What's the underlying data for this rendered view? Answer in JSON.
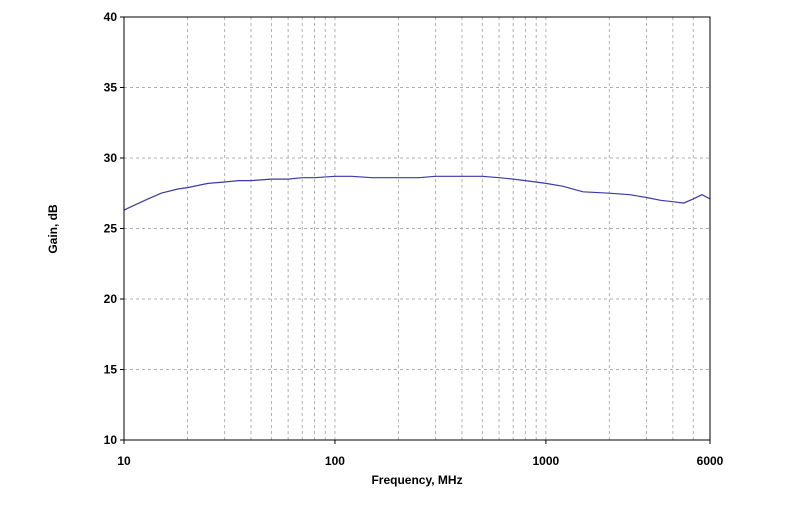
{
  "chart_data": {
    "type": "line",
    "title": "",
    "xlabel": "Frequency, MHz",
    "ylabel": "Gain, dB",
    "x_scale": "log",
    "xlim": [
      10,
      6000
    ],
    "ylim": [
      10,
      40
    ],
    "x_ticks": [
      10,
      100,
      1000,
      6000
    ],
    "x_tick_labels": [
      "10",
      "100",
      "1000",
      "6000"
    ],
    "y_ticks": [
      10,
      15,
      20,
      25,
      30,
      35,
      40
    ],
    "y_tick_labels": [
      "10",
      "15",
      "20",
      "25",
      "30",
      "35",
      "40"
    ],
    "grid": true,
    "legend": "none",
    "series": [
      {
        "color": "#3a3aa8",
        "x": [
          10,
          11,
          13,
          15,
          18,
          20,
          25,
          30,
          35,
          40,
          50,
          60,
          70,
          80,
          100,
          120,
          150,
          200,
          250,
          300,
          400,
          500,
          600,
          700,
          800,
          1000,
          1200,
          1500,
          2000,
          2500,
          3000,
          3500,
          4000,
          4500,
          5000,
          5500,
          6000
        ],
        "y": [
          26.3,
          26.6,
          27.1,
          27.5,
          27.8,
          27.9,
          28.2,
          28.3,
          28.4,
          28.4,
          28.5,
          28.5,
          28.6,
          28.6,
          28.7,
          28.7,
          28.6,
          28.6,
          28.6,
          28.7,
          28.7,
          28.7,
          28.6,
          28.5,
          28.4,
          28.2,
          28.0,
          27.6,
          27.5,
          27.4,
          27.2,
          27.0,
          26.9,
          26.8,
          27.1,
          27.4,
          27.1
        ]
      }
    ]
  },
  "colors": {
    "plot_border": "#000000",
    "grid": "#b0b0b0",
    "series_line": "#3a3aa8"
  }
}
